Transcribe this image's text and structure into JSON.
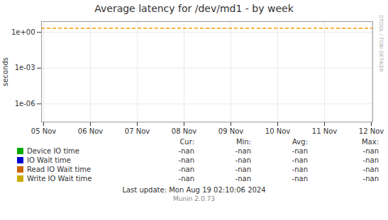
{
  "chart_data": {
    "type": "line",
    "title": "Average latency for /dev/md1 - by week",
    "ylabel": "seconds",
    "categories": [
      "05 Nov",
      "06 Nov",
      "07 Nov",
      "08 Nov",
      "09 Nov",
      "10 Nov",
      "11 Nov",
      "12 Nov"
    ],
    "series": [
      {
        "name": "Device IO time",
        "color": "#00aa00",
        "values": [
          null,
          null,
          null,
          null,
          null,
          null,
          null,
          null
        ],
        "stats": [
          "-nan",
          "-nan",
          "-nan",
          "-nan"
        ]
      },
      {
        "name": "IO Wait time",
        "color": "#0000cc",
        "values": [
          null,
          null,
          null,
          null,
          null,
          null,
          null,
          null
        ],
        "stats": [
          "-nan",
          "-nan",
          "-nan",
          "-nan"
        ]
      },
      {
        "name": "Read IO Wait time",
        "color": "#cc6600",
        "values": [
          null,
          null,
          null,
          null,
          null,
          null,
          null,
          null
        ],
        "stats": [
          "-nan",
          "-nan",
          "-nan",
          "-nan"
        ]
      },
      {
        "name": "Write IO Wait time",
        "color": "#ccaa00",
        "values": [
          null,
          null,
          null,
          null,
          null,
          null,
          null,
          null
        ],
        "stats": [
          "-nan",
          "-nan",
          "-nan",
          "-nan"
        ]
      }
    ],
    "stats_columns": [
      "Cur:",
      "Min:",
      "Avg:",
      "Max:"
    ],
    "log": "y",
    "ylim": [
      3e-08,
      8.0
    ],
    "yticks": [
      {
        "value": 1e-06,
        "label": "1e-06"
      },
      {
        "value": 0.001,
        "label": "1e-03"
      },
      {
        "value": 1,
        "label": "1e+00"
      }
    ],
    "grid": true,
    "legend": "bottom",
    "reference_line": {
      "value": 2.2,
      "color": "#ff9900",
      "line_style": "dashed"
    },
    "side_label": "RRDTOOL / TOBI OETIKER",
    "footer": "Last update: Mon Aug 19 02:10:06 2024",
    "version": "Munin 2.0.73"
  }
}
